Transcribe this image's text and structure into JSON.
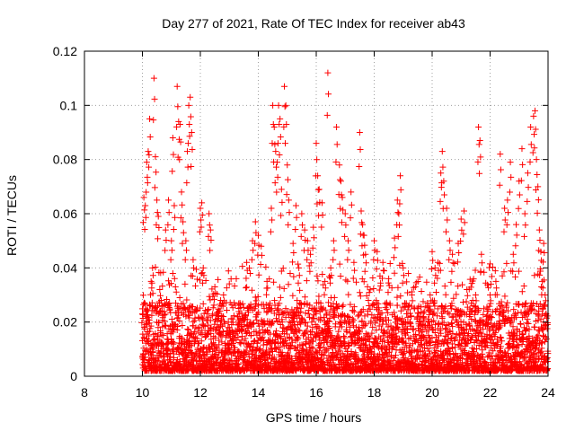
{
  "chart_data": {
    "type": "scatter",
    "title": "Day 277 of 2021, Rate Of TEC Index for receiver ab43",
    "xlabel": "GPS time / hours",
    "ylabel": "ROTI / TECUs",
    "xlim": [
      8,
      24
    ],
    "ylim": [
      0,
      0.12
    ],
    "xticks": [
      8,
      10,
      12,
      14,
      16,
      18,
      20,
      22,
      24
    ],
    "xtick_labels": [
      "8",
      "10",
      "12",
      "14",
      "16",
      "18",
      "20",
      "22",
      "24"
    ],
    "yticks": [
      0,
      0.02,
      0.04,
      0.06,
      0.08,
      0.1,
      0.12
    ],
    "ytick_labels": [
      "0",
      "0.02",
      "0.04",
      "0.06",
      "0.08",
      "0.1",
      "0.12"
    ],
    "grid": true,
    "marker": "+",
    "color": "#ff0000",
    "series": [
      {
        "name": "ROTI",
        "points": [
          [
            10.0,
            0.023
          ],
          [
            10.05,
            0.066
          ],
          [
            10.1,
            0.063
          ],
          [
            10.15,
            0.079
          ],
          [
            10.2,
            0.083
          ],
          [
            10.25,
            0.095
          ],
          [
            10.3,
            0.035
          ],
          [
            10.35,
            0.04
          ],
          [
            10.4,
            0.11
          ],
          [
            10.45,
            0.081
          ],
          [
            10.5,
            0.065
          ],
          [
            10.55,
            0.059
          ],
          [
            10.6,
            0.032
          ],
          [
            10.65,
            0.028
          ],
          [
            10.8,
            0.054
          ],
          [
            10.9,
            0.065
          ],
          [
            11.0,
            0.05
          ],
          [
            11.05,
            0.088
          ],
          [
            11.1,
            0.063
          ],
          [
            11.2,
            0.107
          ],
          [
            11.25,
            0.094
          ],
          [
            11.3,
            0.093
          ],
          [
            11.35,
            0.068
          ],
          [
            11.4,
            0.057
          ],
          [
            11.5,
            0.05
          ],
          [
            11.55,
            0.083
          ],
          [
            11.6,
            0.1
          ],
          [
            11.65,
            0.103
          ],
          [
            11.7,
            0.09
          ],
          [
            11.75,
            0.043
          ],
          [
            12.0,
            0.062
          ],
          [
            12.05,
            0.064
          ],
          [
            12.1,
            0.04
          ],
          [
            12.3,
            0.06
          ],
          [
            12.35,
            0.054
          ],
          [
            12.5,
            0.033
          ],
          [
            12.7,
            0.028
          ],
          [
            12.8,
            0.03
          ],
          [
            13.0,
            0.018
          ],
          [
            13.3,
            0.022
          ],
          [
            13.6,
            0.042
          ],
          [
            13.8,
            0.05
          ],
          [
            13.9,
            0.057
          ],
          [
            14.0,
            0.052
          ],
          [
            14.1,
            0.048
          ],
          [
            14.3,
            0.035
          ],
          [
            14.45,
            0.062
          ],
          [
            14.5,
            0.1
          ],
          [
            14.55,
            0.092
          ],
          [
            14.6,
            0.083
          ],
          [
            14.65,
            0.079
          ],
          [
            14.7,
            0.1
          ],
          [
            14.75,
            0.095
          ],
          [
            14.8,
            0.069
          ],
          [
            14.9,
            0.107
          ],
          [
            14.95,
            0.1
          ],
          [
            15.0,
            0.078
          ],
          [
            15.05,
            0.065
          ],
          [
            15.2,
            0.049
          ],
          [
            15.3,
            0.063
          ],
          [
            15.4,
            0.04
          ],
          [
            15.5,
            0.06
          ],
          [
            15.6,
            0.054
          ],
          [
            15.7,
            0.05
          ],
          [
            15.8,
            0.045
          ],
          [
            15.9,
            0.055
          ],
          [
            16.0,
            0.086
          ],
          [
            16.05,
            0.074
          ],
          [
            16.1,
            0.069
          ],
          [
            16.2,
            0.064
          ],
          [
            16.3,
            0.035
          ],
          [
            16.4,
            0.112
          ],
          [
            16.5,
            0.04
          ],
          [
            16.6,
            0.05
          ],
          [
            16.7,
            0.092
          ],
          [
            16.8,
            0.078
          ],
          [
            16.85,
            0.072
          ],
          [
            16.9,
            0.066
          ],
          [
            17.0,
            0.06
          ],
          [
            17.1,
            0.05
          ],
          [
            17.2,
            0.068
          ],
          [
            17.3,
            0.042
          ],
          [
            17.5,
            0.09
          ],
          [
            17.55,
            0.061
          ],
          [
            17.6,
            0.056
          ],
          [
            17.65,
            0.052
          ],
          [
            17.7,
            0.045
          ],
          [
            17.8,
            0.028
          ],
          [
            18.0,
            0.05
          ],
          [
            18.1,
            0.046
          ],
          [
            18.2,
            0.037
          ],
          [
            18.3,
            0.042
          ],
          [
            18.5,
            0.036
          ],
          [
            18.7,
            0.051
          ],
          [
            18.8,
            0.065
          ],
          [
            18.85,
            0.06
          ],
          [
            18.9,
            0.074
          ],
          [
            19.0,
            0.04
          ],
          [
            19.3,
            0.03
          ],
          [
            19.5,
            0.025
          ],
          [
            19.7,
            0.022
          ],
          [
            19.9,
            0.02
          ],
          [
            20.0,
            0.046
          ],
          [
            20.1,
            0.04
          ],
          [
            20.2,
            0.042
          ],
          [
            20.3,
            0.075
          ],
          [
            20.35,
            0.083
          ],
          [
            20.4,
            0.072
          ],
          [
            20.5,
            0.062
          ],
          [
            20.6,
            0.05
          ],
          [
            20.7,
            0.045
          ],
          [
            20.9,
            0.049
          ],
          [
            21.0,
            0.058
          ],
          [
            21.1,
            0.061
          ],
          [
            21.2,
            0.032
          ],
          [
            21.4,
            0.028
          ],
          [
            21.5,
            0.03
          ],
          [
            21.6,
            0.092
          ],
          [
            21.65,
            0.087
          ],
          [
            21.7,
            0.045
          ],
          [
            21.9,
            0.024
          ],
          [
            22.0,
            0.03
          ],
          [
            22.2,
            0.035
          ],
          [
            22.35,
            0.082
          ],
          [
            22.5,
            0.062
          ],
          [
            22.6,
            0.065
          ],
          [
            22.7,
            0.079
          ],
          [
            22.8,
            0.045
          ],
          [
            22.9,
            0.056
          ],
          [
            23.0,
            0.072
          ],
          [
            23.1,
            0.084
          ],
          [
            23.2,
            0.06
          ],
          [
            23.3,
            0.075
          ],
          [
            23.4,
            0.092
          ],
          [
            23.5,
            0.096
          ],
          [
            23.55,
            0.098
          ],
          [
            23.6,
            0.08
          ],
          [
            23.65,
            0.07
          ],
          [
            23.7,
            0.054
          ],
          [
            23.75,
            0.046
          ],
          [
            23.8,
            0.035
          ],
          [
            23.85,
            0.049
          ],
          [
            23.9,
            0.03
          ]
        ]
      }
    ],
    "baseline": {
      "description_hours": [
        10,
        24
      ],
      "typical_range": [
        0.002,
        0.02
      ]
    }
  }
}
